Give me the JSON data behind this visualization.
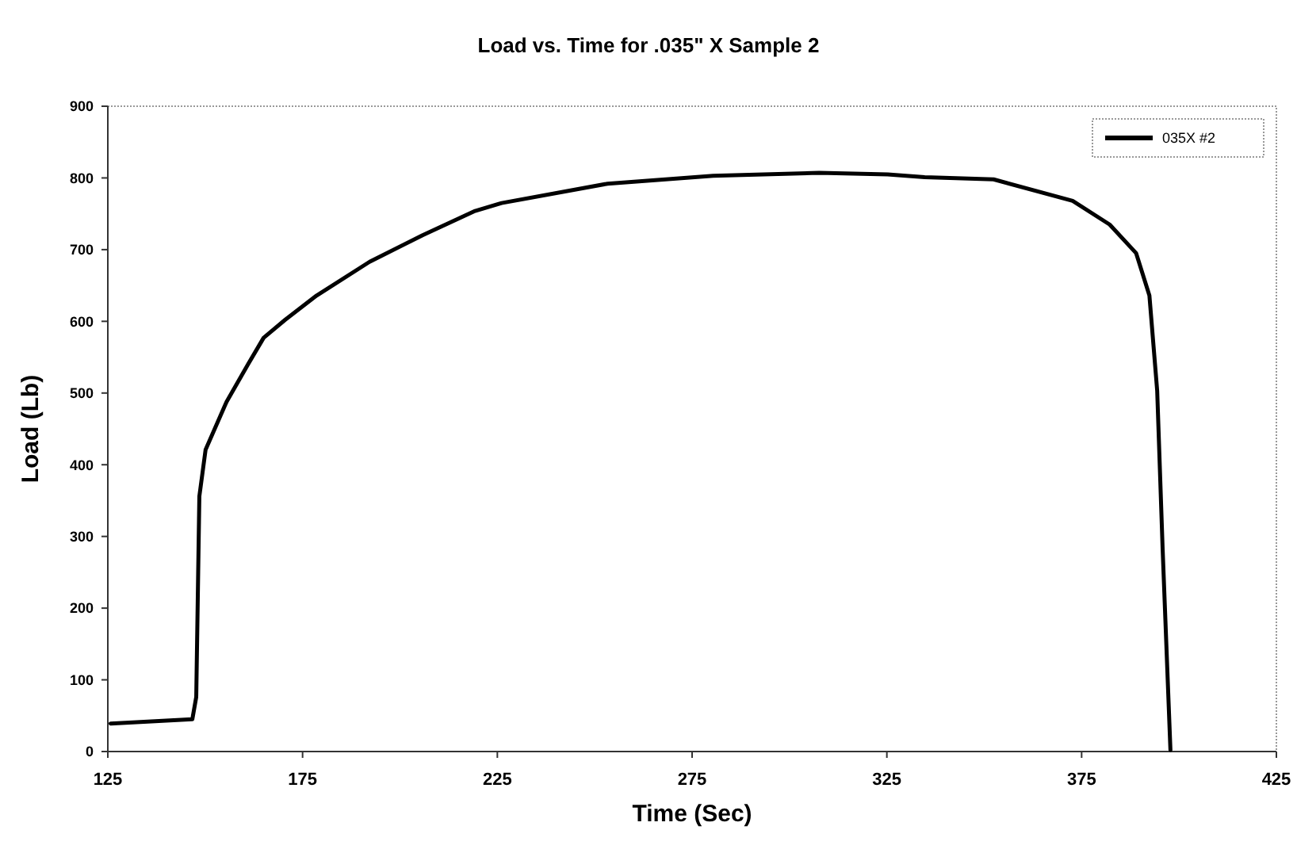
{
  "chart_data": {
    "type": "line",
    "title": "Load vs. Time for .035\" X  Sample 2",
    "xlabel": "Time (Sec)",
    "ylabel": "Load (Lb)",
    "xlim": [
      125,
      425
    ],
    "xticks": [
      125,
      175,
      225,
      275,
      325,
      375,
      425
    ],
    "ylim": [
      0,
      900
    ],
    "yticks": [
      0,
      100,
      200,
      300,
      400,
      500,
      600,
      700,
      800,
      900
    ],
    "grid": false,
    "legend": "top right",
    "line_style": "solid",
    "marker": "none",
    "series": [
      {
        "name": "035X #2",
        "color": "#000000",
        "x": [
          125.7,
          146.7,
          147.7,
          148.5,
          150.1,
          155.5,
          161,
          165,
          170.5,
          178.6,
          192.2,
          205.8,
          219.3,
          226.1,
          253.3,
          280.4,
          307.6,
          325.2,
          334.7,
          352.4,
          372.7,
          382.2,
          389,
          392.4,
          394.4,
          395.8,
          397.8
        ],
        "values": [
          39,
          45,
          76,
          356,
          421,
          488,
          540,
          577,
          602,
          636,
          683,
          720,
          754,
          765,
          792,
          803,
          807,
          805,
          801,
          798,
          768,
          735,
          695,
          636,
          503,
          282,
          2
        ]
      }
    ]
  }
}
